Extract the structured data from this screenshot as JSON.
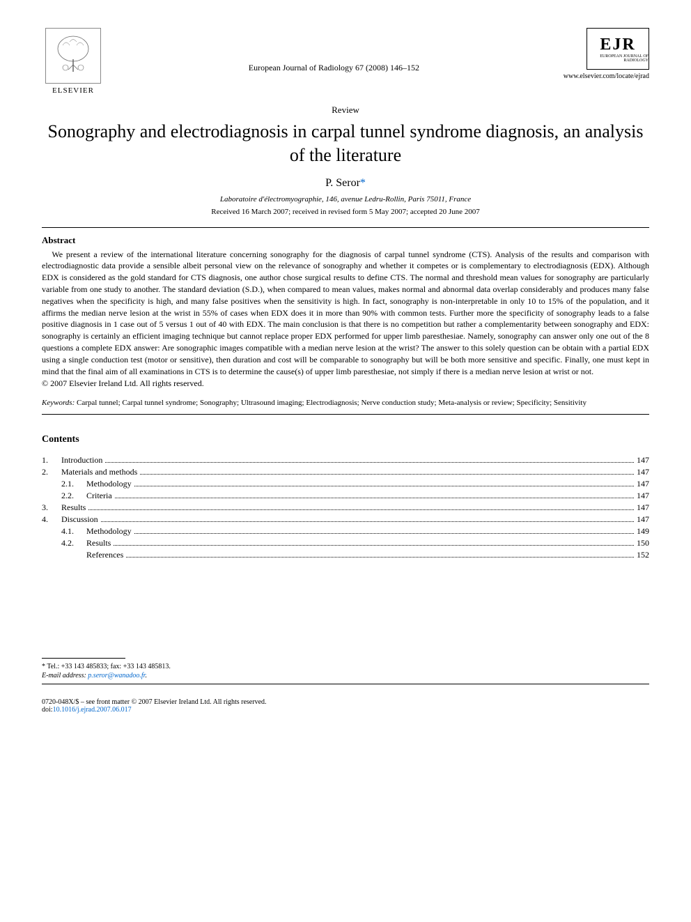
{
  "publisher": {
    "name": "ELSEVIER",
    "logo_alt": "tree"
  },
  "journal": {
    "reference": "European Journal of Radiology 67 (2008) 146–152",
    "abbrev": "EJR",
    "abbrev_sub": "EUROPEAN JOURNAL OF RADIOLOGY",
    "url": "www.elsevier.com/locate/ejrad"
  },
  "article": {
    "type": "Review",
    "title": "Sonography and electrodiagnosis in carpal tunnel syndrome diagnosis, an analysis of the literature",
    "author": "P. Seror",
    "author_marker": "*",
    "affiliation": "Laboratoire d'électromyographie, 146, avenue Ledru-Rollin, Paris 75011, France",
    "dates": "Received 16 March 2007; received in revised form 5 May 2007; accepted 20 June 2007"
  },
  "abstract": {
    "heading": "Abstract",
    "body": "We present a review of the international literature concerning sonography for the diagnosis of carpal tunnel syndrome (CTS). Analysis of the results and comparison with electrodiagnostic data provide a sensible albeit personal view on the relevance of sonography and whether it competes or is complementary to electrodiagnosis (EDX). Although EDX is considered as the gold standard for CTS diagnosis, one author chose surgical results to define CTS. The normal and threshold mean values for sonography are particularly variable from one study to another. The standard deviation (S.D.), when compared to mean values, makes normal and abnormal data overlap considerably and produces many false negatives when the specificity is high, and many false positives when the sensitivity is high. In fact, sonography is non-interpretable in only 10 to 15% of the population, and it affirms the median nerve lesion at the wrist in 55% of cases when EDX does it in more than 90% with common tests. Further more the specificity of sonography leads to a false positive diagnosis in 1 case out of 5 versus 1 out of 40 with EDX. The main conclusion is that there is no competition but rather a complementarity between sonography and EDX: sonography is certainly an efficient imaging technique but cannot replace proper EDX performed for upper limb paresthesiae. Namely, sonography can answer only one out of the 8 questions a complete EDX answer: Are sonographic images compatible with a median nerve lesion at the wrist? The answer to this solely question can be obtain with a partial EDX using a single conduction test (motor or sensitive), then duration and cost will be comparable to sonography but will be both more sensitive and specific. Finally, one must kept in mind that the final aim of all examinations in CTS is to determine the cause(s) of upper limb paresthesiae, not simply if there is a median nerve lesion at wrist or not.",
    "copyright": "© 2007 Elsevier Ireland Ltd. All rights reserved."
  },
  "keywords": {
    "label": "Keywords:",
    "text": " Carpal tunnel; Carpal tunnel syndrome; Sonography; Ultrasound imaging; Electrodiagnosis; Nerve conduction study; Meta-analysis or review; Specificity; Sensitivity"
  },
  "contents": {
    "heading": "Contents",
    "items": [
      {
        "num": "1.",
        "label": "Introduction",
        "page": "147",
        "level": 0
      },
      {
        "num": "2.",
        "label": "Materials and methods",
        "page": "147",
        "level": 0
      },
      {
        "num": "2.1.",
        "label": "Methodology",
        "page": "147",
        "level": 1
      },
      {
        "num": "2.2.",
        "label": "Criteria",
        "page": "147",
        "level": 1
      },
      {
        "num": "3.",
        "label": "Results",
        "page": "147",
        "level": 0
      },
      {
        "num": "4.",
        "label": "Discussion",
        "page": "147",
        "level": 0
      },
      {
        "num": "4.1.",
        "label": "Methodology",
        "page": "149",
        "level": 1
      },
      {
        "num": "4.2.",
        "label": "Results",
        "page": "150",
        "level": 1
      },
      {
        "num": "",
        "label": "References",
        "page": "152",
        "level": 1
      }
    ]
  },
  "footer": {
    "correspondence_marker": "*",
    "tel_label": "Tel.: +33 143 485833; fax: +33 143 485813.",
    "email_label": "E-mail address:",
    "email": "p.seror@wanadoo.fr",
    "issn": "0720-048X/$ – see front matter © 2007 Elsevier Ireland Ltd. All rights reserved.",
    "doi_label": "doi:",
    "doi": "10.1016/j.ejrad.2007.06.017"
  },
  "colors": {
    "text": "#000000",
    "link": "#0066cc",
    "background": "#ffffff",
    "logo_border": "#888888"
  },
  "typography": {
    "title_fontsize": 26,
    "body_fontsize": 12,
    "small_fontsize": 11,
    "footer_fontsize": 10,
    "font_family": "Georgia, Times New Roman, serif"
  }
}
